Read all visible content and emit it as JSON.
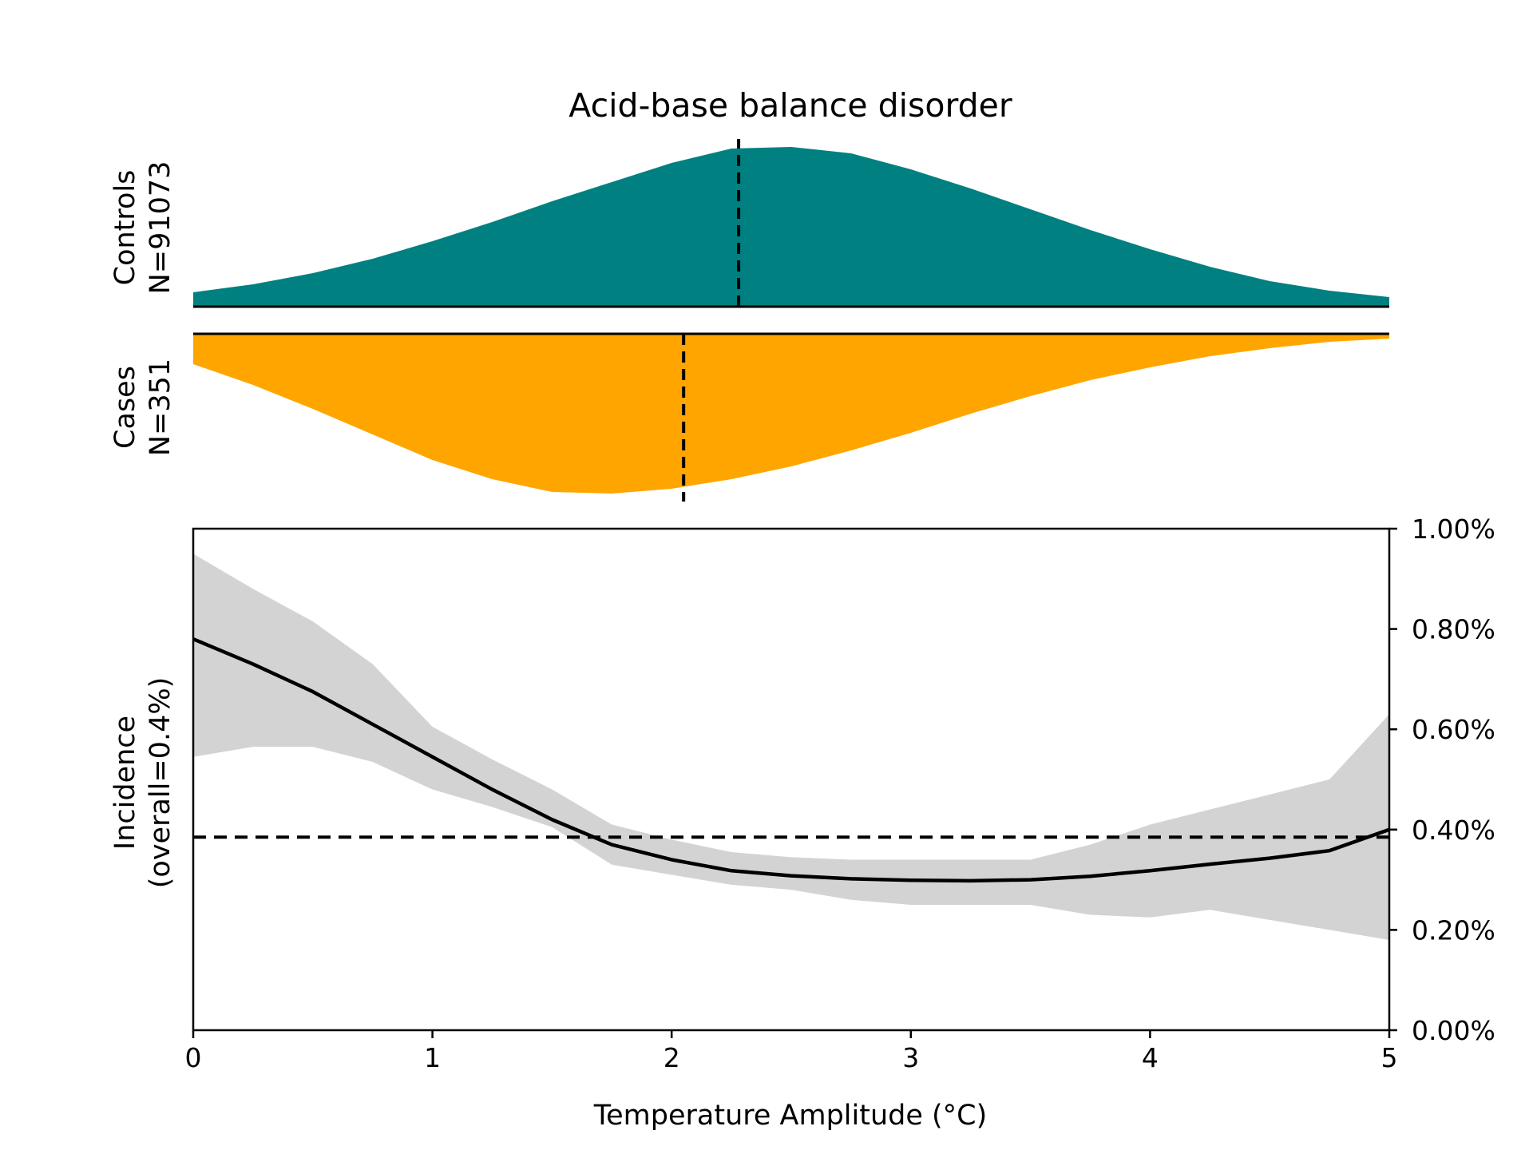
{
  "chart_data": {
    "type": "area",
    "title": "Acid-base balance disorder",
    "x_range": [
      0,
      5
    ],
    "colors": {
      "controls": "#008080",
      "cases": "#FFA500",
      "band": "#D3D3D3",
      "line": "#000000"
    },
    "distribution_panels": [
      {
        "name": "Controls",
        "n_label": "N=91073",
        "label": "Controls",
        "direction": "up",
        "mean_x": 2.28,
        "x": [
          0,
          0.25,
          0.5,
          0.75,
          1.0,
          1.25,
          1.5,
          1.75,
          2.0,
          2.25,
          2.5,
          2.75,
          3.0,
          3.25,
          3.5,
          3.75,
          4.0,
          4.25,
          4.5,
          4.75,
          5.0
        ],
        "density": [
          0.09,
          0.14,
          0.21,
          0.3,
          0.41,
          0.53,
          0.66,
          0.78,
          0.9,
          0.99,
          1.0,
          0.96,
          0.86,
          0.74,
          0.61,
          0.48,
          0.36,
          0.25,
          0.16,
          0.1,
          0.06
        ]
      },
      {
        "name": "Cases",
        "n_label": "N=351",
        "label": "Cases",
        "direction": "down",
        "mean_x": 2.05,
        "x": [
          0,
          0.25,
          0.5,
          0.75,
          1.0,
          1.25,
          1.5,
          1.75,
          2.0,
          2.25,
          2.5,
          2.75,
          3.0,
          3.25,
          3.5,
          3.75,
          4.0,
          4.25,
          4.5,
          4.75,
          5.0
        ],
        "density": [
          0.19,
          0.32,
          0.47,
          0.63,
          0.79,
          0.91,
          0.99,
          1.0,
          0.97,
          0.91,
          0.83,
          0.73,
          0.62,
          0.5,
          0.39,
          0.29,
          0.21,
          0.14,
          0.09,
          0.05,
          0.03
        ]
      }
    ],
    "incidence": {
      "ylabel": [
        "Incidence",
        "(overall=0.4%)"
      ],
      "xlabel": "Temperature Amplitude (°C)",
      "ylim": [
        0,
        1.0
      ],
      "overall": 0.385,
      "x_ticks": [
        0,
        1,
        2,
        3,
        4,
        5
      ],
      "x_tick_labels": [
        "0",
        "1",
        "2",
        "3",
        "4",
        "5"
      ],
      "y_ticks": [
        0,
        0.2,
        0.4,
        0.6,
        0.8,
        1.0
      ],
      "y_tick_labels": [
        "0.00%",
        "0.20%",
        "0.40%",
        "0.60%",
        "0.80%",
        "1.00%"
      ],
      "x": [
        0,
        0.25,
        0.5,
        0.75,
        1.0,
        1.25,
        1.5,
        1.75,
        2.0,
        2.25,
        2.5,
        2.75,
        3.0,
        3.25,
        3.5,
        3.75,
        4.0,
        4.25,
        4.5,
        4.75,
        5.0
      ],
      "mean": [
        0.78,
        0.73,
        0.675,
        0.61,
        0.545,
        0.48,
        0.42,
        0.37,
        0.34,
        0.318,
        0.308,
        0.302,
        0.299,
        0.298,
        0.3,
        0.307,
        0.318,
        0.331,
        0.343,
        0.358,
        0.4
      ],
      "lower": [
        0.545,
        0.565,
        0.565,
        0.535,
        0.48,
        0.445,
        0.405,
        0.33,
        0.31,
        0.29,
        0.28,
        0.26,
        0.25,
        0.25,
        0.25,
        0.23,
        0.225,
        0.24,
        0.22,
        0.2,
        0.18
      ],
      "upper": [
        0.95,
        0.88,
        0.815,
        0.73,
        0.605,
        0.54,
        0.48,
        0.41,
        0.38,
        0.355,
        0.345,
        0.34,
        0.34,
        0.34,
        0.34,
        0.37,
        0.41,
        0.44,
        0.47,
        0.5,
        0.63
      ]
    }
  }
}
